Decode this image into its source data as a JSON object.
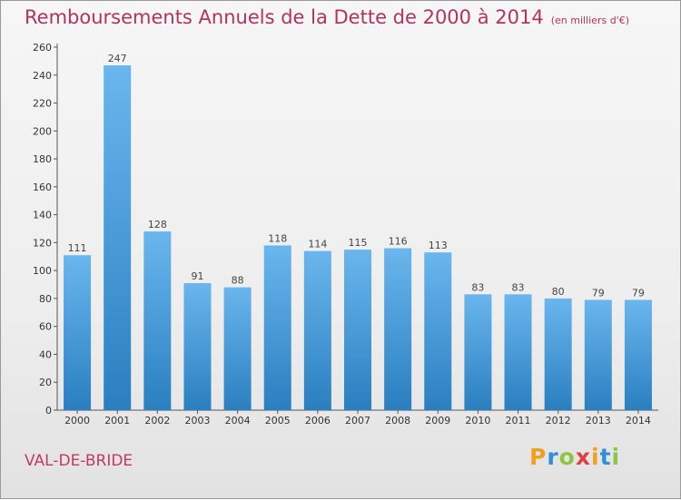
{
  "chart_data": {
    "type": "bar",
    "title": "Remboursements Annuels de la Dette de 2000 à 2014",
    "unit": "(en milliers d'€)",
    "categories": [
      "2000",
      "2001",
      "2002",
      "2003",
      "2004",
      "2005",
      "2006",
      "2007",
      "2008",
      "2009",
      "2010",
      "2011",
      "2012",
      "2013",
      "2014"
    ],
    "values": [
      111,
      247,
      128,
      91,
      88,
      118,
      114,
      115,
      116,
      113,
      83,
      83,
      80,
      79,
      79
    ],
    "ylim": [
      0,
      260
    ],
    "yticks": [
      0,
      20,
      40,
      60,
      80,
      100,
      120,
      140,
      160,
      180,
      200,
      220,
      240,
      260
    ],
    "xlabel": "",
    "ylabel": "",
    "grid": false,
    "colors": {
      "bar_light": "#6ab6ee",
      "bar_dark": "#2a7fc0",
      "title": "#b4335d"
    }
  },
  "footer": {
    "commune": "VAL-DE-BRIDE",
    "logo_letters": [
      "P",
      "r",
      "o",
      "x",
      "i",
      "t",
      "i"
    ],
    "logo_colors": [
      "#f0a020",
      "#2f8fd8",
      "#8cc63f",
      "#e04040",
      "#f0a020",
      "#2f8fd8",
      "#8cc63f"
    ]
  }
}
